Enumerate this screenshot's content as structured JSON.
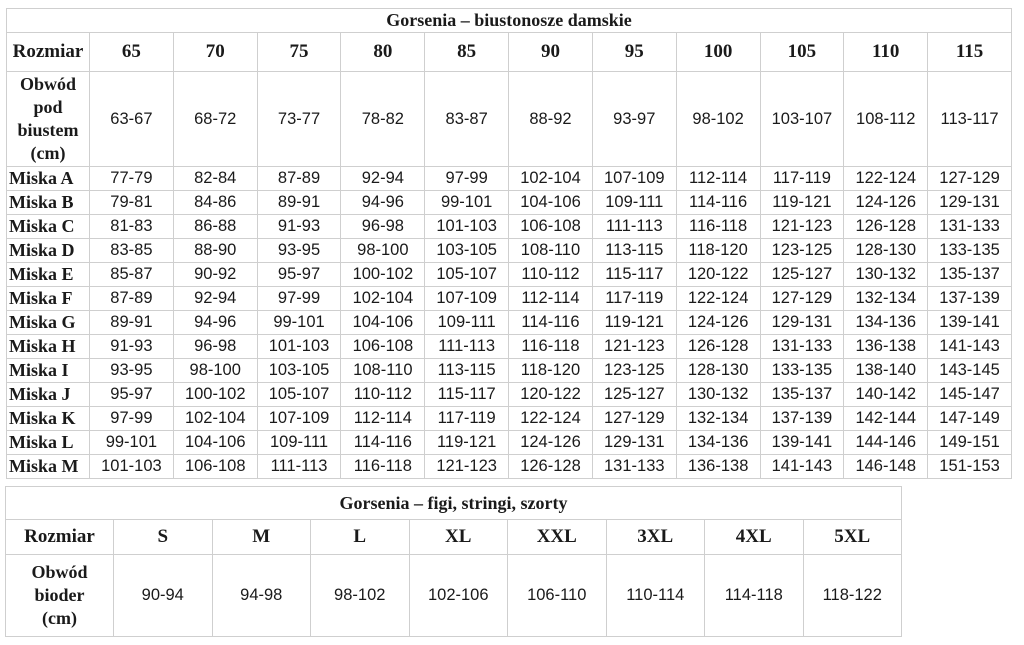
{
  "bras": {
    "title": "Gorsenia – biustonosze damskie",
    "header_label": "Rozmiar",
    "sizes": [
      "65",
      "70",
      "75",
      "80",
      "85",
      "90",
      "95",
      "100",
      "105",
      "110",
      "115"
    ],
    "underbust": {
      "label_lines": [
        "Obwód",
        "pod",
        "biustem",
        "(cm)"
      ],
      "values": [
        "63-67",
        "68-72",
        "73-77",
        "78-82",
        "83-87",
        "88-92",
        "93-97",
        "98-102",
        "103-107",
        "108-112",
        "113-117"
      ]
    },
    "cups": [
      {
        "label": "Miska A",
        "values": [
          "77-79",
          "82-84",
          "87-89",
          "92-94",
          "97-99",
          "102-104",
          "107-109",
          "112-114",
          "117-119",
          "122-124",
          "127-129"
        ]
      },
      {
        "label": "Miska B",
        "values": [
          "79-81",
          "84-86",
          "89-91",
          "94-96",
          "99-101",
          "104-106",
          "109-111",
          "114-116",
          "119-121",
          "124-126",
          "129-131"
        ]
      },
      {
        "label": "Miska C",
        "values": [
          "81-83",
          "86-88",
          "91-93",
          "96-98",
          "101-103",
          "106-108",
          "111-113",
          "116-118",
          "121-123",
          "126-128",
          "131-133"
        ]
      },
      {
        "label": "Miska D",
        "values": [
          "83-85",
          "88-90",
          "93-95",
          "98-100",
          "103-105",
          "108-110",
          "113-115",
          "118-120",
          "123-125",
          "128-130",
          "133-135"
        ]
      },
      {
        "label": "Miska E",
        "values": [
          "85-87",
          "90-92",
          "95-97",
          "100-102",
          "105-107",
          "110-112",
          "115-117",
          "120-122",
          "125-127",
          "130-132",
          "135-137"
        ]
      },
      {
        "label": "Miska F",
        "values": [
          "87-89",
          "92-94",
          "97-99",
          "102-104",
          "107-109",
          "112-114",
          "117-119",
          "122-124",
          "127-129",
          "132-134",
          "137-139"
        ]
      },
      {
        "label": "Miska G",
        "values": [
          "89-91",
          "94-96",
          "99-101",
          "104-106",
          "109-111",
          "114-116",
          "119-121",
          "124-126",
          "129-131",
          "134-136",
          "139-141"
        ]
      },
      {
        "label": "Miska H",
        "values": [
          "91-93",
          "96-98",
          "101-103",
          "106-108",
          "111-113",
          "116-118",
          "121-123",
          "126-128",
          "131-133",
          "136-138",
          "141-143"
        ]
      },
      {
        "label": "Miska I",
        "values": [
          "93-95",
          "98-100",
          "103-105",
          "108-110",
          "113-115",
          "118-120",
          "123-125",
          "128-130",
          "133-135",
          "138-140",
          "143-145"
        ]
      },
      {
        "label": "Miska J",
        "values": [
          "95-97",
          "100-102",
          "105-107",
          "110-112",
          "115-117",
          "120-122",
          "125-127",
          "130-132",
          "135-137",
          "140-142",
          "145-147"
        ]
      },
      {
        "label": "Miska K",
        "values": [
          "97-99",
          "102-104",
          "107-109",
          "112-114",
          "117-119",
          "122-124",
          "127-129",
          "132-134",
          "137-139",
          "142-144",
          "147-149"
        ]
      },
      {
        "label": "Miska L",
        "values": [
          "99-101",
          "104-106",
          "109-111",
          "114-116",
          "119-121",
          "124-126",
          "129-131",
          "134-136",
          "139-141",
          "144-146",
          "149-151"
        ]
      },
      {
        "label": "Miska M",
        "values": [
          "101-103",
          "106-108",
          "111-113",
          "116-118",
          "121-123",
          "126-128",
          "131-133",
          "136-138",
          "141-143",
          "146-148",
          "151-153"
        ]
      }
    ]
  },
  "briefs": {
    "title": "Gorsenia – figi, stringi, szorty",
    "header_label": "Rozmiar",
    "sizes": [
      "S",
      "M",
      "L",
      "XL",
      "XXL",
      "3XL",
      "4XL",
      "5XL"
    ],
    "hips": {
      "label_lines": [
        "Obwód",
        "bioder",
        "(cm)"
      ],
      "values": [
        "90-94",
        "94-98",
        "98-102",
        "102-106",
        "106-110",
        "110-114",
        "114-118",
        "118-122"
      ]
    }
  }
}
